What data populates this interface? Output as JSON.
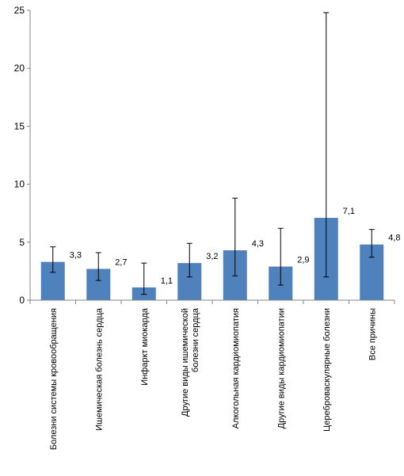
{
  "chart_data": {
    "type": "bar",
    "title": "",
    "xlabel": "",
    "ylabel": "",
    "ylim": [
      0,
      25
    ],
    "yticks": [
      0,
      5,
      10,
      15,
      20,
      25
    ],
    "grid": false,
    "legend": "none",
    "bar_color": "#4f81bd",
    "categories": [
      [
        "Болезни системы кровообращения"
      ],
      [
        "Ишемическая болезнь сердца"
      ],
      [
        "Инфаркт миокарда"
      ],
      [
        "Другие виды ишемической",
        "болезни сердца"
      ],
      [
        "Алкогольная кардиомиопатия"
      ],
      [
        "Другие виды кардиомиопатии"
      ],
      [
        "Цереброваскулярные болезни"
      ],
      [
        "Все причины"
      ]
    ],
    "values": [
      3.3,
      2.7,
      1.1,
      3.2,
      4.3,
      2.9,
      7.1,
      4.8
    ],
    "value_labels": [
      "3,3",
      "2,7",
      "1,1",
      "3,2",
      "4,3",
      "2,9",
      "7,1",
      "4,8"
    ],
    "error_low": [
      2.4,
      1.7,
      0.5,
      2.0,
      2.1,
      1.3,
      2.0,
      3.7
    ],
    "error_high": [
      4.6,
      4.1,
      3.2,
      4.9,
      8.8,
      6.2,
      24.8,
      6.1
    ]
  }
}
